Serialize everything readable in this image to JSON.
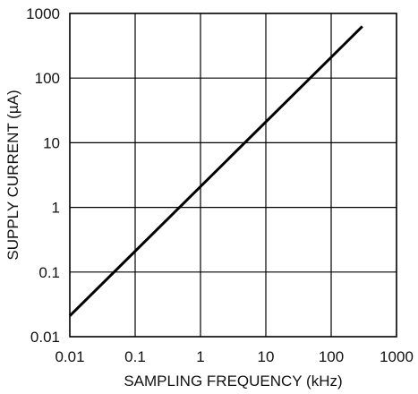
{
  "chart_data": {
    "type": "line",
    "title": "",
    "xlabel": "SAMPLING FREQUENCY (kHz)",
    "ylabel": "SUPPLY CURRENT (µA)",
    "x_scale": "log",
    "y_scale": "log",
    "xlim": [
      0.01,
      1000
    ],
    "ylim": [
      0.01,
      1000
    ],
    "x_ticks": [
      "0.01",
      "0.1",
      "1",
      "10",
      "100",
      "1000"
    ],
    "y_ticks": [
      "0.01",
      "0.1",
      "1",
      "10",
      "100",
      "1000"
    ],
    "grid": true,
    "legend": "none",
    "series": [
      {
        "x": [
          0.01,
          300
        ],
        "y": [
          0.021,
          630
        ]
      }
    ]
  },
  "colors": {
    "line": "#000000",
    "grid": "#000000",
    "background": "#ffffff"
  }
}
